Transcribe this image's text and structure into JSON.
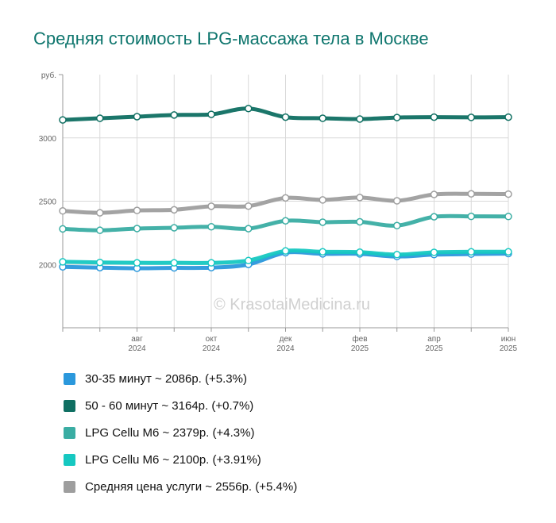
{
  "title": "Средняя стоимость LPG-массажа тела в Москве",
  "watermark": "© KrasotaiMedicina.ru",
  "chart_data": {
    "type": "line",
    "ylabel": "руб.",
    "ylim": [
      1500,
      3500
    ],
    "yticks": [
      2000,
      2500,
      3000
    ],
    "x_months": [
      "2024-06",
      "2024-07",
      "2024-08",
      "2024-09",
      "2024-10",
      "2024-11",
      "2024-12",
      "2025-01",
      "2025-02",
      "2025-03",
      "2025-04",
      "2025-05",
      "2025-06"
    ],
    "x_tick_labels": [
      {
        "month": "авг",
        "year": "2024"
      },
      {
        "month": "окт",
        "year": "2024"
      },
      {
        "month": "дек",
        "year": "2024"
      },
      {
        "month": "фев",
        "year": "2025"
      },
      {
        "month": "апр",
        "year": "2025"
      },
      {
        "month": "июн",
        "year": "2025"
      }
    ],
    "grid": true,
    "series": [
      {
        "name": "30-35 минут ~ 2086р. (+5.3%)",
        "color": "#2b98dc",
        "values": [
          1981,
          1975,
          1970,
          1973,
          1975,
          2000,
          2093,
          2084,
          2084,
          2063,
          2078,
          2082,
          2086
        ]
      },
      {
        "name": "50 - 60 минут ~ 3164р. (+0.7%)",
        "color": "#0f6f62",
        "values": [
          3142,
          3155,
          3168,
          3181,
          3186,
          3232,
          3164,
          3155,
          3149,
          3161,
          3164,
          3162,
          3164
        ]
      },
      {
        "name": "LPG Cellu M6 ~ 2379р. (+4.3%)",
        "color": "#3aada3",
        "values": [
          2281,
          2270,
          2284,
          2290,
          2298,
          2283,
          2345,
          2334,
          2337,
          2307,
          2377,
          2380,
          2379
        ]
      },
      {
        "name": "LPG Cellu M6 ~ 2100р. (+3.91%)",
        "color": "#16c8c1",
        "values": [
          2021,
          2016,
          2013,
          2013,
          2013,
          2031,
          2107,
          2100,
          2097,
          2078,
          2096,
          2100,
          2100
        ]
      },
      {
        "name": "Средняя цена услуги ~ 2556р. (+5.4%)",
        "color": "#9e9e9e",
        "values": [
          2423,
          2408,
          2427,
          2432,
          2460,
          2461,
          2526,
          2510,
          2529,
          2503,
          2553,
          2558,
          2556
        ]
      }
    ]
  }
}
